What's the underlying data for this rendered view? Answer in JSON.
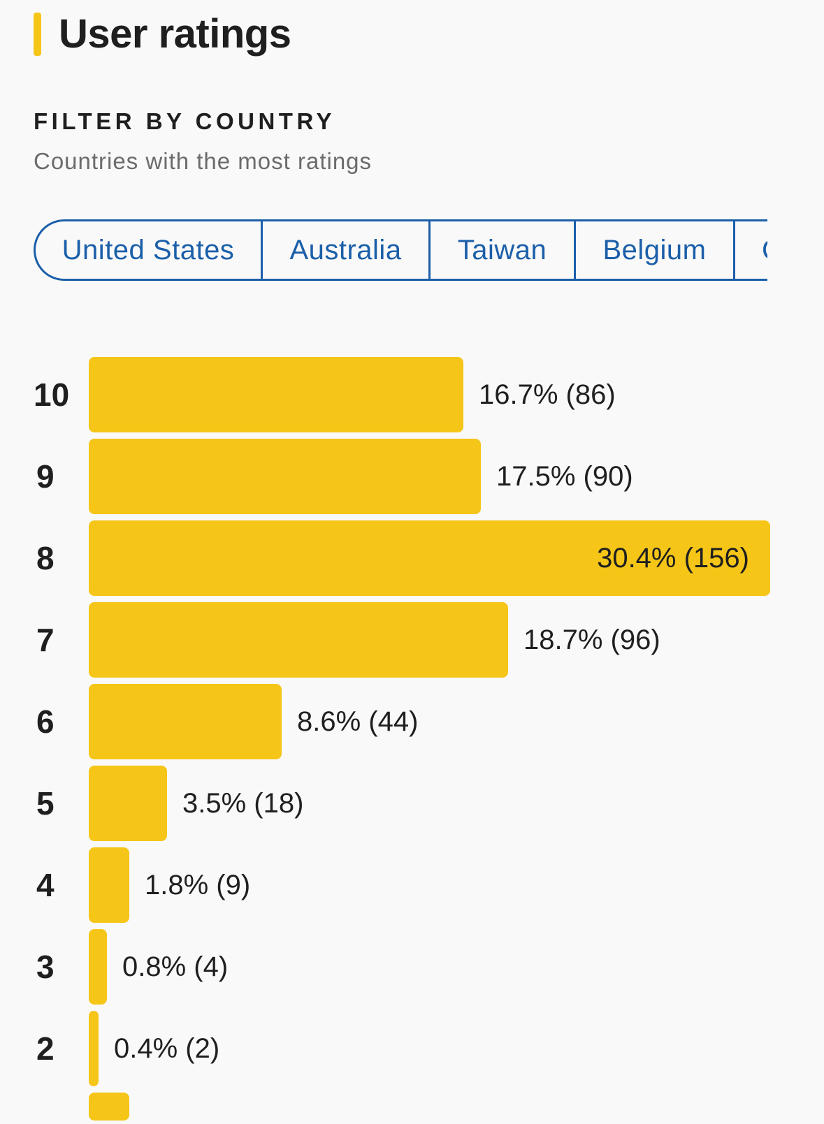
{
  "section": {
    "title": "User ratings",
    "accent_color": "#f5c518"
  },
  "filter": {
    "heading": "FILTER BY COUNTRY",
    "subtitle": "Countries with the most ratings",
    "countries": [
      "United States",
      "Australia",
      "Taiwan",
      "Belgium",
      "C"
    ],
    "accent_color": "#1b5fa9"
  },
  "chart_data": {
    "type": "bar",
    "orientation": "horizontal",
    "categories": [
      "10",
      "9",
      "8",
      "7",
      "6",
      "5",
      "4",
      "3",
      "2"
    ],
    "percentages": [
      16.7,
      17.5,
      30.4,
      18.7,
      8.6,
      3.5,
      1.8,
      0.8,
      0.4
    ],
    "counts": [
      86,
      90,
      156,
      96,
      44,
      18,
      9,
      4,
      2
    ],
    "value_labels": [
      "16.7% (86)",
      "17.5% (90)",
      "30.4% (156)",
      "18.7% (96)",
      "8.6% (44)",
      "3.5% (18)",
      "1.8% (9)",
      "0.8% (4)",
      "0.4% (2)"
    ],
    "bar_color": "#f5c518"
  }
}
